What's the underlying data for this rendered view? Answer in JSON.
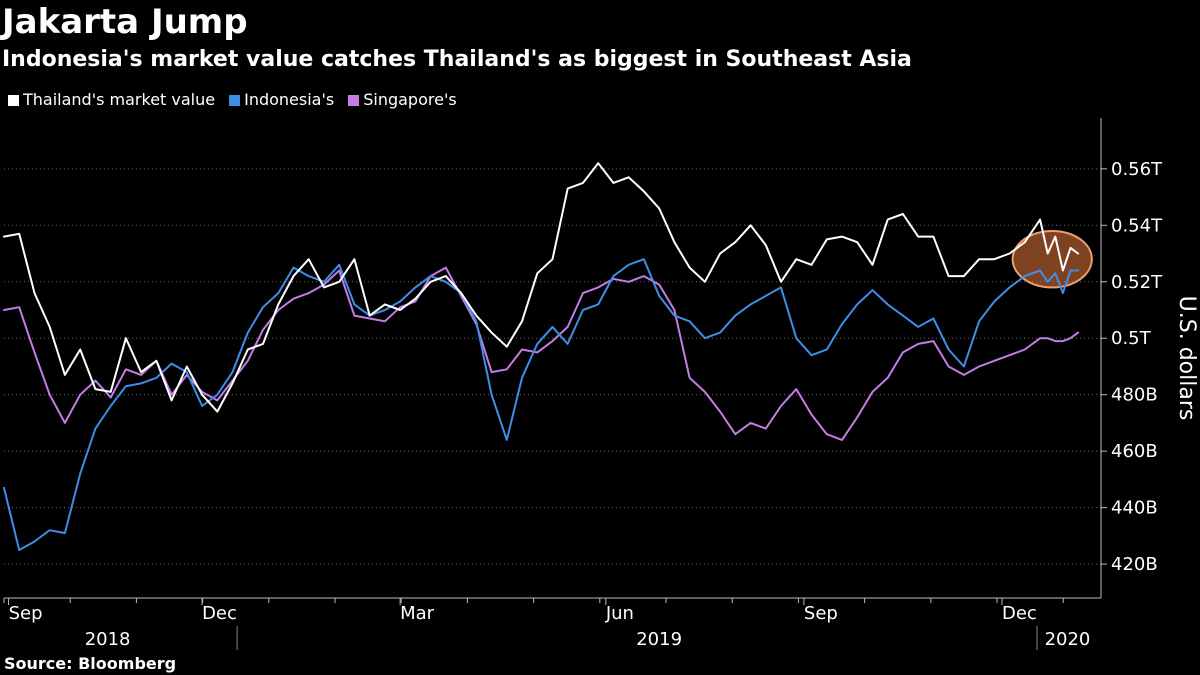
{
  "chart_data": {
    "type": "line",
    "title": "Jakarta Jump",
    "subtitle": "Indonesia's market value catches Thailand's as biggest in Southeast Asia",
    "ylabel": "U.S. dollars",
    "xlabel": "",
    "ylim": [
      408,
      578
    ],
    "y_ticks": [
      {
        "value": 420,
        "label": "420B"
      },
      {
        "value": 440,
        "label": "440B"
      },
      {
        "value": 460,
        "label": "460B"
      },
      {
        "value": 480,
        "label": "480B"
      },
      {
        "value": 500,
        "label": "0.5T"
      },
      {
        "value": 520,
        "label": "0.52T"
      },
      {
        "value": 540,
        "label": "0.54T"
      },
      {
        "value": 560,
        "label": "0.56T"
      }
    ],
    "x_range": [
      0,
      72
    ],
    "x_ticks": [
      {
        "x": 0.3,
        "label": "Sep"
      },
      {
        "x": 13,
        "label": "Dec"
      },
      {
        "x": 26,
        "label": "Mar"
      },
      {
        "x": 39.5,
        "label": "Jun"
      },
      {
        "x": 52.5,
        "label": "Sep"
      },
      {
        "x": 65.5,
        "label": "Dec"
      }
    ],
    "x_units": "weeks from start of September 2018",
    "year_labels": [
      {
        "x": 6.8,
        "label": "2018"
      },
      {
        "x": 43,
        "label": "2019"
      },
      {
        "x": 69.8,
        "label": "2020"
      }
    ],
    "year_dividers": [
      15.3,
      67.8
    ],
    "highlight": {
      "x": 68.8,
      "y": 528,
      "rx": 2.6,
      "ry": 10
    },
    "legend": [
      "Thailand's market value",
      "Indonesia's",
      "Singapore's"
    ],
    "series": [
      {
        "name": "Thailand's market value",
        "color": "#ffffff",
        "x": [
          0,
          1,
          2,
          3,
          4,
          5,
          6,
          7,
          8,
          9,
          10,
          11,
          12,
          13,
          14,
          15,
          16,
          17,
          18,
          19,
          20,
          21,
          22,
          23,
          24,
          25,
          26,
          27,
          28,
          29,
          30,
          31,
          32,
          33,
          34,
          35,
          36,
          37,
          38,
          39,
          40,
          41,
          42,
          43,
          44,
          45,
          46,
          47,
          48,
          49,
          50,
          51,
          52,
          53,
          54,
          55,
          56,
          57,
          58,
          59,
          60,
          61,
          62,
          63,
          64,
          65,
          66,
          67,
          68,
          68.5,
          69,
          69.5,
          70,
          70.5
        ],
        "values": [
          536,
          537,
          516,
          504,
          487,
          496,
          482,
          481,
          500,
          488,
          492,
          478,
          490,
          480,
          474,
          484,
          496,
          498,
          512,
          522,
          528,
          518,
          520,
          528,
          508,
          512,
          510,
          514,
          520,
          522,
          516,
          508,
          502,
          497,
          506,
          523,
          528,
          553,
          555,
          562,
          555,
          557,
          552,
          546,
          534,
          525,
          520,
          530,
          534,
          540,
          533,
          520,
          528,
          526,
          535,
          536,
          534,
          526,
          542,
          544,
          536,
          536,
          522,
          522,
          528,
          528,
          530,
          534,
          542,
          530,
          536,
          524,
          532,
          530
        ]
      },
      {
        "name": "Indonesia's",
        "color": "#3e8ee8",
        "x": [
          0,
          1,
          2,
          3,
          4,
          5,
          6,
          7,
          8,
          9,
          10,
          11,
          12,
          13,
          14,
          15,
          16,
          17,
          18,
          19,
          20,
          21,
          22,
          23,
          24,
          25,
          26,
          27,
          28,
          29,
          30,
          31,
          32,
          33,
          34,
          35,
          36,
          37,
          38,
          39,
          40,
          41,
          42,
          43,
          44,
          45,
          46,
          47,
          48,
          49,
          50,
          51,
          52,
          53,
          54,
          55,
          56,
          57,
          58,
          59,
          60,
          61,
          62,
          63,
          64,
          65,
          66,
          67,
          68,
          68.5,
          69,
          69.5,
          70,
          70.5
        ],
        "values": [
          447,
          425,
          428,
          432,
          431,
          452,
          468,
          476,
          483,
          484,
          486,
          491,
          488,
          476,
          480,
          488,
          502,
          511,
          516,
          525,
          522,
          520,
          526,
          512,
          508,
          510,
          513,
          518,
          522,
          520,
          516,
          506,
          480,
          464,
          486,
          498,
          504,
          498,
          510,
          512,
          522,
          526,
          528,
          515,
          508,
          506,
          500,
          502,
          508,
          512,
          515,
          518,
          500,
          494,
          496,
          505,
          512,
          517,
          512,
          508,
          504,
          507,
          496,
          490,
          506,
          513,
          518,
          522,
          524,
          520,
          523,
          516,
          524,
          524
        ]
      },
      {
        "name": "Singapore's",
        "color": "#c47ce6",
        "x": [
          0,
          1,
          2,
          3,
          4,
          5,
          6,
          7,
          8,
          9,
          10,
          11,
          12,
          13,
          14,
          15,
          16,
          17,
          18,
          19,
          20,
          21,
          22,
          23,
          24,
          25,
          26,
          27,
          28,
          29,
          30,
          31,
          32,
          33,
          34,
          35,
          36,
          37,
          38,
          39,
          40,
          41,
          42,
          43,
          44,
          45,
          46,
          47,
          48,
          49,
          50,
          51,
          52,
          53,
          54,
          55,
          56,
          57,
          58,
          59,
          60,
          61,
          62,
          63,
          64,
          65,
          66,
          67,
          68,
          68.5,
          69,
          69.5,
          70,
          70.5
        ],
        "values": [
          510,
          511,
          495,
          480,
          470,
          480,
          485,
          479,
          489,
          487,
          492,
          480,
          487,
          481,
          478,
          485,
          492,
          503,
          510,
          514,
          516,
          519,
          524,
          508,
          507,
          506,
          511,
          513,
          522,
          525,
          515,
          505,
          488,
          489,
          496,
          495,
          499,
          504,
          516,
          518,
          521,
          520,
          522,
          519,
          510,
          486,
          481,
          474,
          466,
          470,
          468,
          476,
          482,
          473,
          466,
          464,
          472,
          481,
          486,
          495,
          498,
          499,
          490,
          487,
          490,
          492,
          494,
          496,
          500,
          500,
          499,
          499,
          500,
          502
        ]
      }
    ]
  }
}
